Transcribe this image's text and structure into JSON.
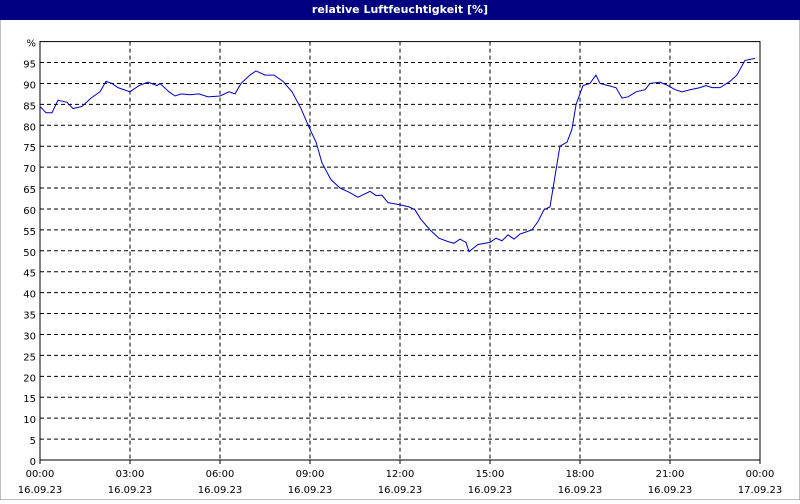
{
  "chart_data": {
    "type": "line",
    "title": "relative Luftfeuchtigkeit [%]",
    "xlim": [
      0,
      24
    ],
    "xticks": [
      {
        "value": 0,
        "label": "00:00"
      },
      {
        "value": 3,
        "label": "03:00"
      },
      {
        "value": 6,
        "label": "06:00"
      },
      {
        "value": 9,
        "label": "09:00"
      },
      {
        "value": 12,
        "label": "12:00"
      },
      {
        "value": 15,
        "label": "15:00"
      },
      {
        "value": 18,
        "label": "18:00"
      },
      {
        "value": 21,
        "label": "21:00"
      },
      {
        "value": 24,
        "label": "00:00"
      }
    ],
    "xtick_dates": [
      "16.09.23",
      "16.09.23",
      "16.09.23",
      "16.09.23",
      "16.09.23",
      "16.09.23",
      "16.09.23",
      "16.09.23",
      "17.09.23"
    ],
    "ylim": [
      0,
      100
    ],
    "yticks": [
      0,
      5,
      10,
      15,
      20,
      25,
      30,
      35,
      40,
      45,
      50,
      55,
      60,
      65,
      70,
      75,
      80,
      85,
      90,
      95,
      {
        "value": 100,
        "label": "%"
      }
    ],
    "grid": true,
    "series": [
      {
        "color": "#0000c0",
        "x": [
          0,
          0.2,
          0.4,
          0.6,
          0.9,
          1.1,
          1.4,
          1.7,
          2.0,
          2.2,
          2.4,
          2.6,
          2.8,
          3.0,
          3.3,
          3.6,
          3.9,
          4.0,
          4.3,
          4.5,
          4.7,
          5.0,
          5.3,
          5.6,
          6.0,
          6.3,
          6.5,
          6.7,
          7.0,
          7.2,
          7.5,
          7.8,
          8.1,
          8.4,
          8.7,
          9.0,
          9.2,
          9.4,
          9.7,
          10.0,
          10.3,
          10.6,
          10.8,
          11.0,
          11.2,
          11.4,
          11.6,
          12.0,
          12.3,
          12.5,
          12.7,
          13.0,
          13.3,
          13.6,
          13.8,
          14.0,
          14.2,
          14.3,
          14.6,
          15.0,
          15.2,
          15.4,
          15.6,
          15.8,
          16.0,
          16.2,
          16.4,
          16.6,
          16.8,
          17.0,
          17.33,
          17.57,
          17.73,
          17.87,
          18.1,
          18.33,
          18.53,
          18.67,
          18.93,
          19.2,
          19.4,
          19.6,
          19.87,
          20.17,
          20.33,
          20.67,
          20.93,
          21.17,
          21.4,
          21.67,
          22.0,
          22.2,
          22.4,
          22.67,
          23.0,
          23.23,
          23.5,
          23.83
        ],
        "values": [
          84.5,
          83,
          83,
          86,
          85.5,
          84,
          84.5,
          86.5,
          88,
          90.5,
          90,
          89,
          88.5,
          88,
          89.5,
          90.3,
          89.5,
          90,
          88,
          87,
          87.5,
          87.3,
          87.5,
          86.8,
          87,
          88,
          87.5,
          90,
          92,
          93,
          92,
          92,
          90.5,
          88,
          84,
          79,
          76,
          71,
          67,
          65,
          64,
          62.8,
          63.5,
          64.2,
          63.2,
          63.3,
          61.5,
          61,
          60.5,
          59.8,
          57.5,
          55,
          53,
          52.2,
          51.8,
          52.8,
          52,
          49.8,
          51.5,
          52,
          53,
          52.4,
          53.8,
          52.8,
          54,
          54.5,
          55,
          57,
          59.8,
          60.5,
          75,
          76,
          79,
          85,
          89.5,
          90,
          92,
          90,
          89.5,
          89,
          86.5,
          86.8,
          88,
          88.5,
          90,
          90.3,
          89.5,
          88.5,
          88,
          88.5,
          89,
          89.5,
          89,
          89,
          90.5,
          92,
          95.5,
          96
        ]
      }
    ]
  }
}
